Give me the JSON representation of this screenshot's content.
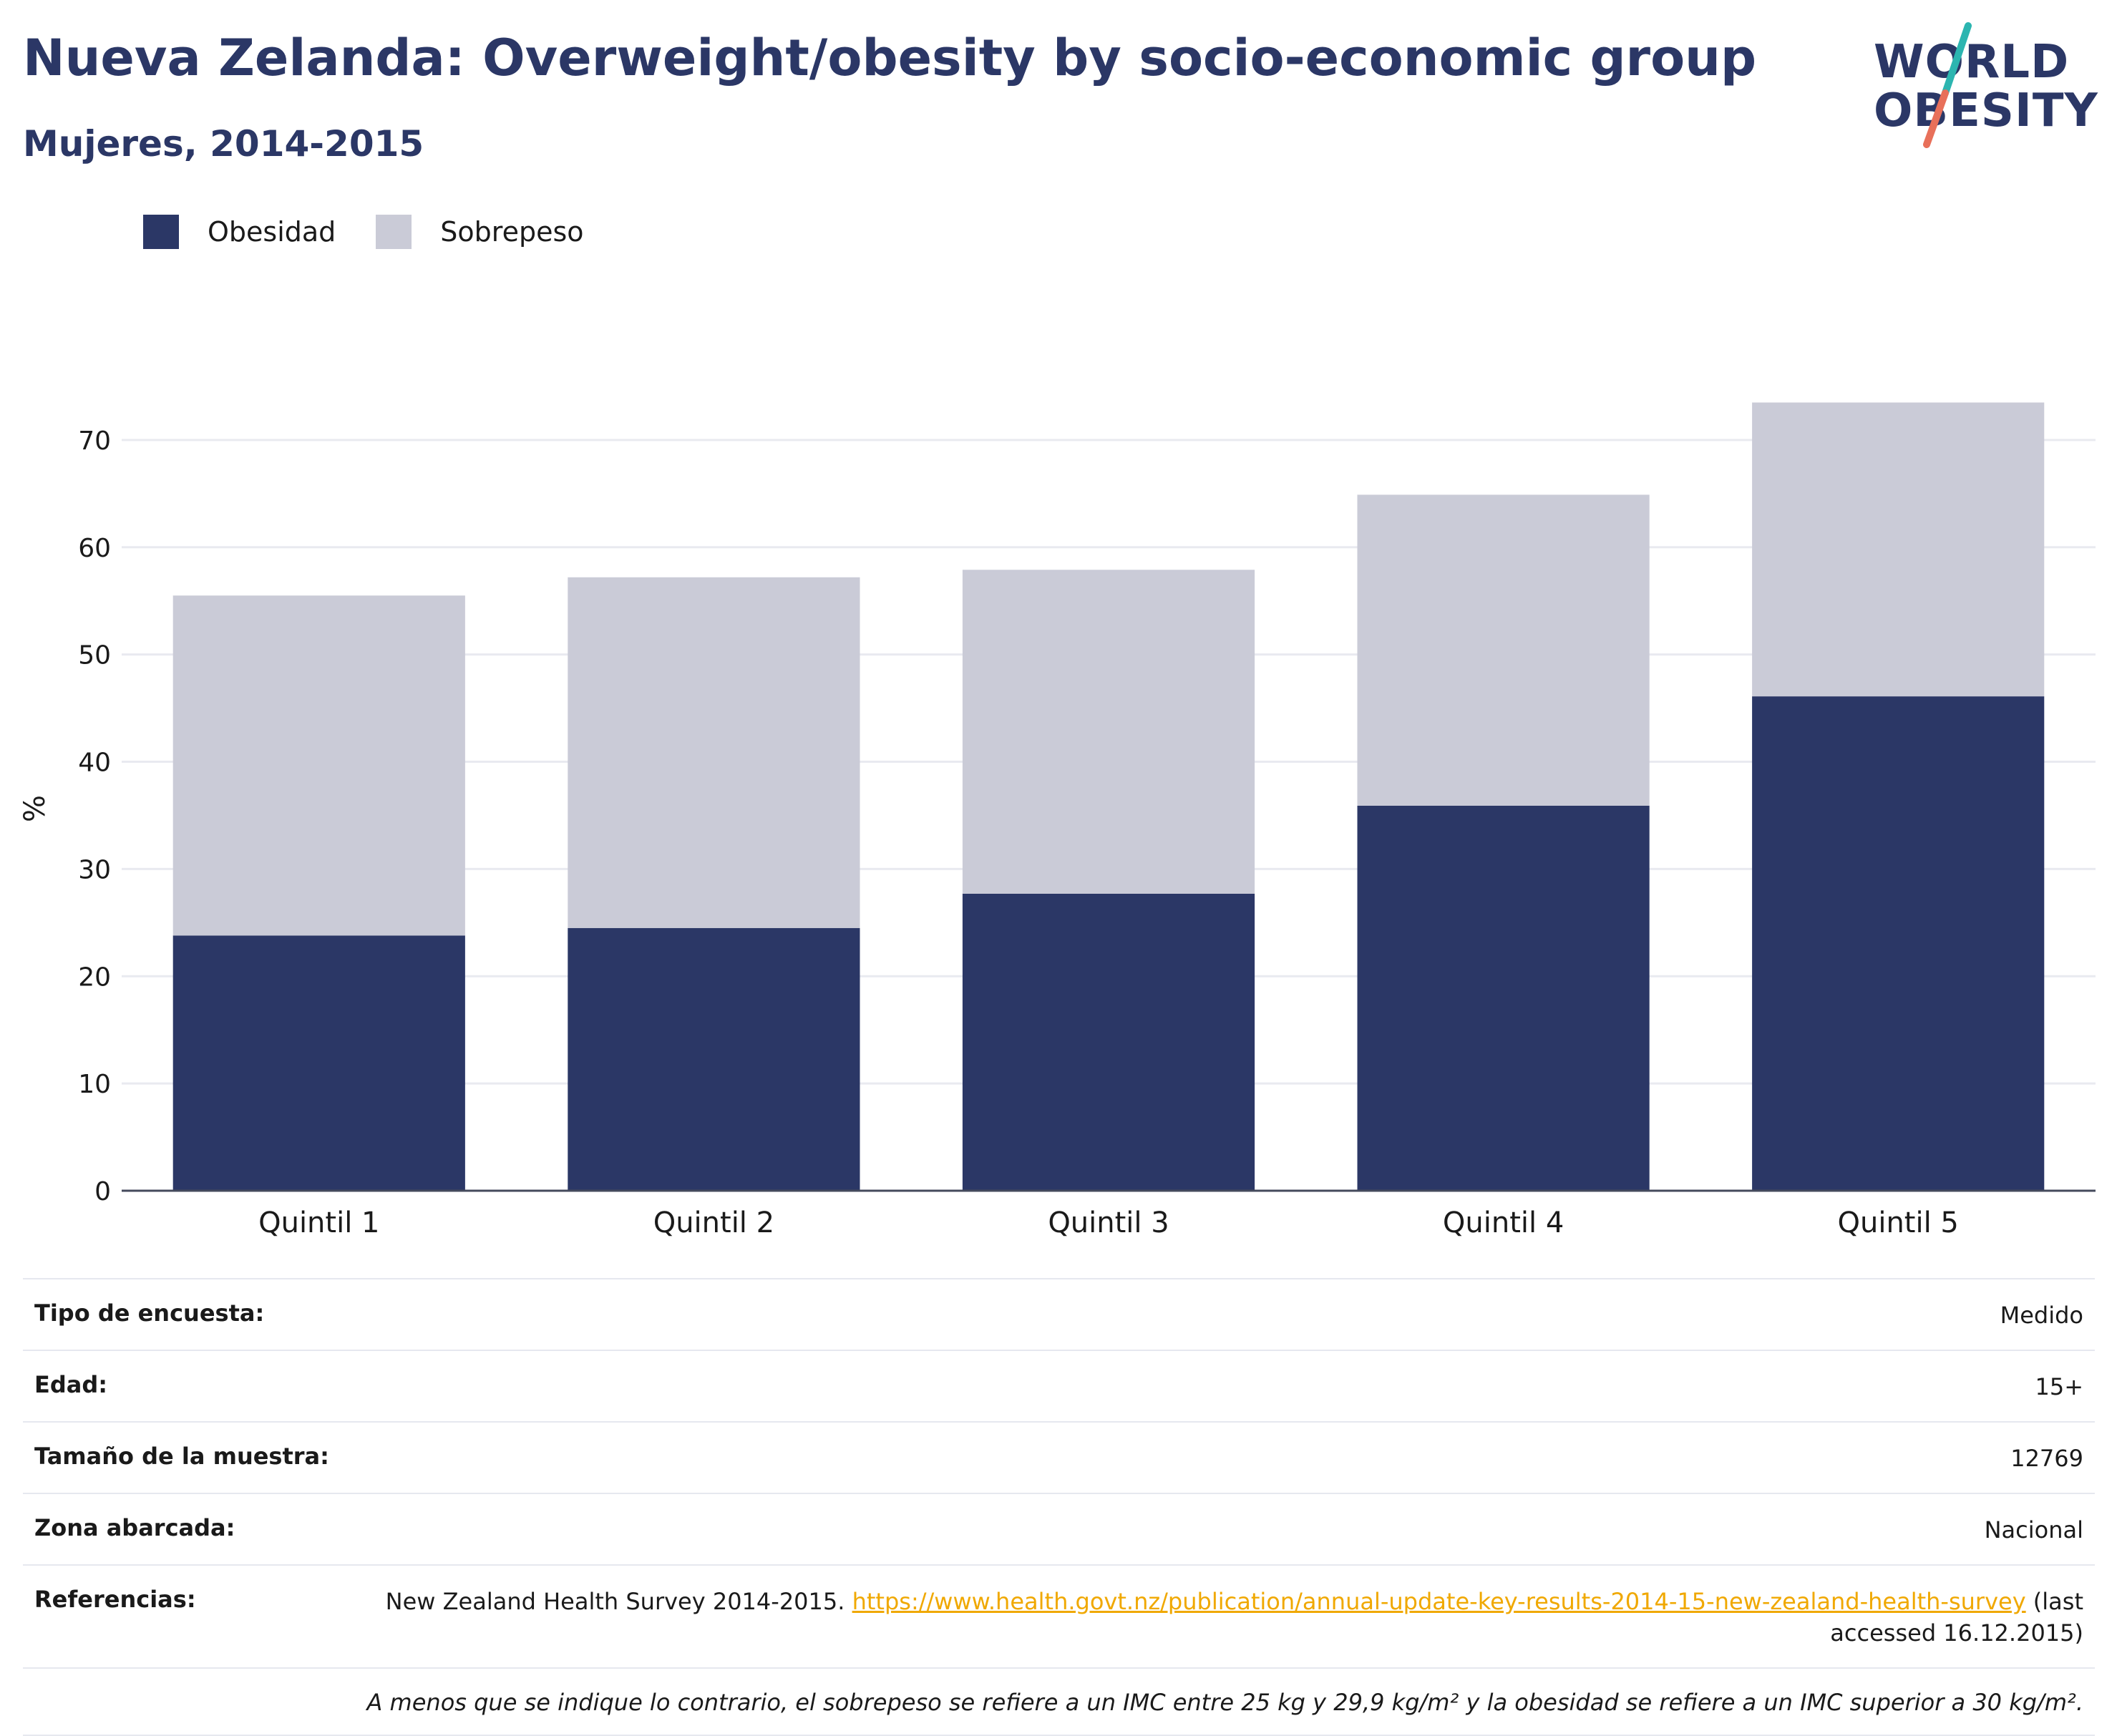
{
  "header": {
    "title": "Nueva Zelanda: Overweight/obesity by socio-economic group",
    "subtitle": "Mujeres, 2014-2015"
  },
  "logo": {
    "line1": "WORLD",
    "line2": "OBESITY",
    "slash_color_top": "#2cb5b0",
    "slash_color_bottom": "#e8705a"
  },
  "legend": {
    "items": [
      {
        "label": "Obesidad",
        "color": "#2b3766"
      },
      {
        "label": "Sobrepeso",
        "color": "#cacbd7"
      }
    ]
  },
  "chart_data": {
    "type": "bar",
    "stacked": true,
    "categories": [
      "Quintil 1",
      "Quintil 2",
      "Quintil 3",
      "Quintil 4",
      "Quintil 5"
    ],
    "series": [
      {
        "name": "Obesidad",
        "color": "#2b3766",
        "values": [
          23.8,
          24.5,
          27.7,
          35.9,
          46.1
        ]
      },
      {
        "name": "Sobrepeso",
        "color": "#cacbd7",
        "values": [
          31.7,
          32.7,
          30.2,
          29.0,
          27.4
        ]
      }
    ],
    "ylabel": "%",
    "ylim": [
      0,
      75
    ],
    "yticks": [
      0,
      10,
      20,
      30,
      40,
      50,
      60,
      70
    ],
    "grid": true,
    "legend_position": "top-left"
  },
  "info": {
    "rows": [
      {
        "key": "Tipo de encuesta:",
        "value": "Medido"
      },
      {
        "key": "Edad:",
        "value": "15+"
      },
      {
        "key": "Tamaño de la muestra:",
        "value": "12769"
      },
      {
        "key": "Zona abarcada:",
        "value": "Nacional"
      }
    ],
    "references": {
      "key": "Referencias:",
      "text_before": "New Zealand Health Survey 2014-2015.",
      "link": "https://www.health.govt.nz/publication/annual-update-key-results-2014-15-new-zealand-health-survey",
      "text_after": "(last accessed 16.12.2015)"
    },
    "note": "A menos que se indique lo contrario, el sobrepeso se refiere a un IMC entre 25 kg y 29,9 kg/m² y la obesidad se refiere a un IMC superior a 30 kg/m²."
  }
}
